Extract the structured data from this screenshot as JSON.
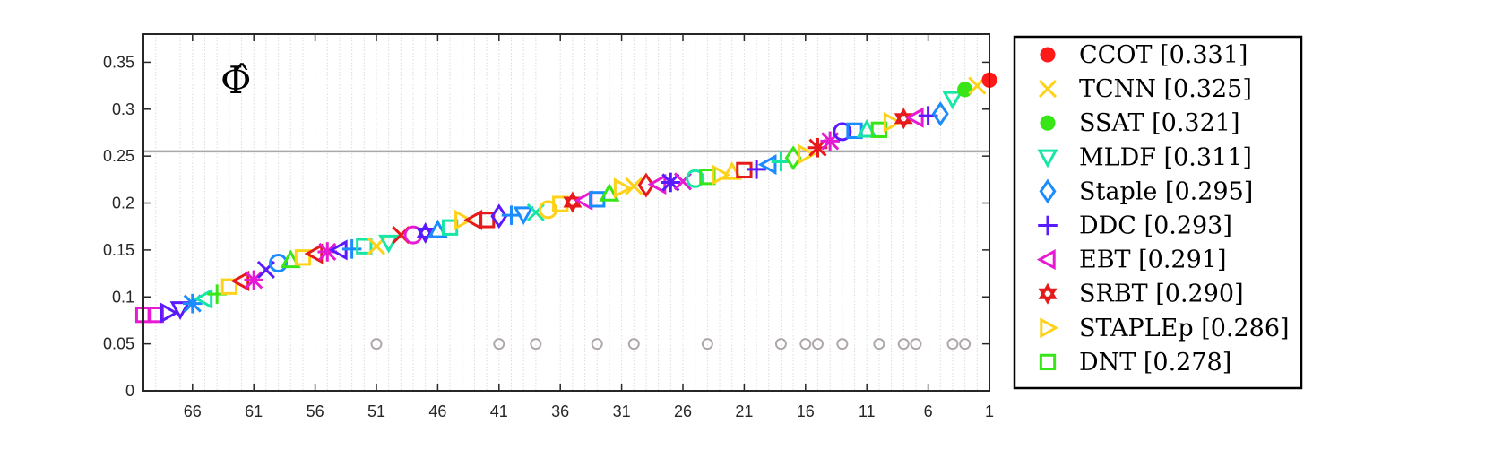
{
  "chart_data": {
    "type": "scatter",
    "title": "",
    "annotation": "Φ̂",
    "xlabel": "",
    "ylabel": "",
    "x_axis": "rank (reversed, 70 trackers)",
    "xlim": [
      70,
      1
    ],
    "ylim": [
      0,
      0.38
    ],
    "x_ticks": [
      66,
      61,
      56,
      51,
      46,
      41,
      36,
      31,
      26,
      21,
      16,
      11,
      6,
      1
    ],
    "y_ticks": [
      0,
      0.05,
      0.1,
      0.15,
      0.2,
      0.25,
      0.3,
      0.35
    ],
    "y_tick_labels": [
      "0",
      "0.05",
      "0.1",
      "0.15",
      "0.2",
      "0.25",
      "0.3",
      "0.35"
    ],
    "reference_line": 0.255,
    "gridlines": "vertical dotted per rank",
    "legend_position": "right-outside",
    "legend": [
      {
        "name": "CCOT [0.331]",
        "marker": "filled-circle",
        "color": "#ff1a1a"
      },
      {
        "name": "TCNN [0.325]",
        "marker": "x",
        "color": "#ffd21a"
      },
      {
        "name": "SSAT [0.321]",
        "marker": "filled-circle",
        "color": "#38e617"
      },
      {
        "name": "MLDF [0.311]",
        "marker": "triangle-down",
        "color": "#17e6a5"
      },
      {
        "name": "Staple [0.295]",
        "marker": "diamond",
        "color": "#1a8cff"
      },
      {
        "name": "DDC [0.293]",
        "marker": "plus",
        "color": "#5a1aff"
      },
      {
        "name": "EBT [0.291]",
        "marker": "triangle-left",
        "color": "#e61ad2"
      },
      {
        "name": "SRBT [0.290]",
        "marker": "hexagram",
        "color": "#e61a1a"
      },
      {
        "name": "STAPLEp [0.286]",
        "marker": "triangle-right",
        "color": "#ffd21a"
      },
      {
        "name": "DNT [0.278]",
        "marker": "square",
        "color": "#38e617"
      }
    ],
    "points": {
      "rank": [
        1,
        2,
        3,
        4,
        5,
        6,
        7,
        8,
        9,
        10,
        11,
        12,
        13,
        14,
        15,
        16,
        17,
        18,
        19,
        20,
        21,
        22,
        23,
        24,
        25,
        26,
        27,
        28,
        29,
        30,
        31,
        32,
        33,
        34,
        35,
        36,
        37,
        38,
        39,
        40,
        41,
        42,
        43,
        44,
        45,
        46,
        47,
        48,
        49,
        50,
        51,
        52,
        53,
        54,
        55,
        56,
        57,
        58,
        59,
        60,
        61,
        62,
        63,
        64,
        65,
        66,
        67,
        68,
        69,
        70
      ],
      "value": [
        0.331,
        0.325,
        0.321,
        0.311,
        0.295,
        0.293,
        0.291,
        0.29,
        0.286,
        0.278,
        0.278,
        0.277,
        0.276,
        0.266,
        0.259,
        0.252,
        0.248,
        0.244,
        0.241,
        0.236,
        0.235,
        0.233,
        0.23,
        0.228,
        0.226,
        0.223,
        0.222,
        0.22,
        0.219,
        0.218,
        0.216,
        0.21,
        0.204,
        0.203,
        0.201,
        0.199,
        0.193,
        0.19,
        0.188,
        0.187,
        0.186,
        0.182,
        0.182,
        0.182,
        0.174,
        0.171,
        0.168,
        0.166,
        0.166,
        0.158,
        0.154,
        0.154,
        0.151,
        0.15,
        0.148,
        0.146,
        0.142,
        0.139,
        0.136,
        0.129,
        0.118,
        0.117,
        0.111,
        0.103,
        0.098,
        0.093,
        0.087,
        0.083,
        0.081,
        0.081
      ],
      "marker": [
        "filled-circle",
        "x",
        "filled-circle",
        "triangle-down",
        "diamond",
        "plus",
        "triangle-left",
        "hexagram",
        "triangle-right",
        "square",
        "triangle-up",
        "square",
        "circle",
        "asterisk",
        "asterisk",
        "triangle-right",
        "diamond",
        "plus",
        "triangle-left",
        "plus",
        "square",
        "triangle-up",
        "triangle-right",
        "square",
        "circle",
        "x",
        "asterisk",
        "triangle-left",
        "diamond",
        "x",
        "triangle-right",
        "triangle-up",
        "square",
        "triangle-left",
        "hexagram",
        "square",
        "circle",
        "x",
        "triangle-down",
        "plus",
        "diamond",
        "square",
        "triangle-left",
        "triangle-right",
        "square",
        "triangle-up",
        "hexagram",
        "circle",
        "x",
        "triangle-down",
        "x",
        "square",
        "plus",
        "triangle-left",
        "asterisk",
        "triangle-left",
        "square",
        "triangle-up",
        "circle",
        "x",
        "asterisk",
        "triangle-left",
        "square",
        "plus",
        "triangle-left",
        "asterisk",
        "triangle-down",
        "triangle-right",
        "square",
        "square"
      ],
      "color": [
        "#ff1a1a",
        "#ffd21a",
        "#38e617",
        "#17e6a5",
        "#1a8cff",
        "#5a1aff",
        "#e61ad2",
        "#e61a1a",
        "#ffd21a",
        "#38e617",
        "#17e6a5",
        "#1a8cff",
        "#5a1aff",
        "#e61ad2",
        "#e61a1a",
        "#ffd21a",
        "#38e617",
        "#17e6a5",
        "#1a8cff",
        "#5a1aff",
        "#e61a1a",
        "#ffd21a",
        "#ffd21a",
        "#38e617",
        "#17e6a5",
        "#e61ad2",
        "#5a1aff",
        "#e61ad2",
        "#e61a1a",
        "#ffd21a",
        "#ffd21a",
        "#38e617",
        "#1a8cff",
        "#e61ad2",
        "#e61a1a",
        "#ffd21a",
        "#ffd21a",
        "#17e6a5",
        "#1a8cff",
        "#1a8cff",
        "#5a1aff",
        "#e61a1a",
        "#e61a1a",
        "#ffd21a",
        "#17e6a5",
        "#1a8cff",
        "#5a1aff",
        "#e61ad2",
        "#e61a1a",
        "#17e6a5",
        "#ffd21a",
        "#17e6a5",
        "#1a8cff",
        "#5a1aff",
        "#e61ad2",
        "#e61a1a",
        "#ffd21a",
        "#38e617",
        "#1a8cff",
        "#5a1aff",
        "#e61ad2",
        "#e61a1a",
        "#ffd21a",
        "#38e617",
        "#17e6a5",
        "#1a8cff",
        "#5a1aff",
        "#5a1aff",
        "#e61ad2",
        "#e61ad2"
      ]
    },
    "zero_markers": {
      "value": 0.05,
      "color": "#b0a8a8",
      "ranks": [
        3,
        4,
        7,
        8,
        10,
        13,
        15,
        16,
        18,
        24,
        30,
        33,
        38,
        41,
        51
      ]
    }
  }
}
